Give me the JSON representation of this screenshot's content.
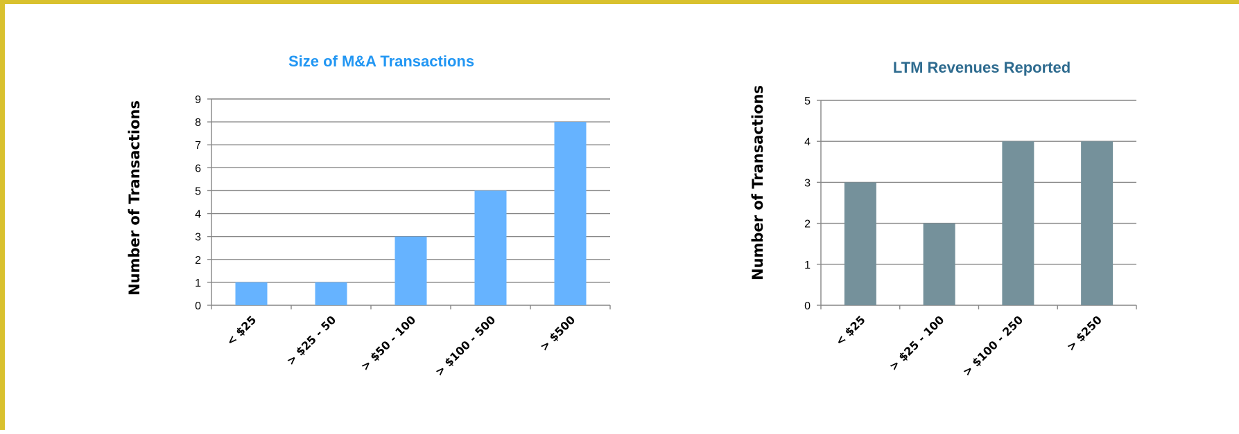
{
  "chart_data": [
    {
      "type": "bar",
      "title": "Size of M&A Transactions",
      "ylabel": "Number of Transactions",
      "xlabel": "",
      "categories": [
        "< $25",
        "> $25 - 50",
        "> $50 - 100",
        "> $100 - 500",
        "> $500"
      ],
      "values": [
        1,
        1,
        3,
        5,
        8
      ],
      "ylim": [
        0,
        9
      ],
      "yticks": [
        "0",
        "1",
        "2",
        "3",
        "4",
        "5",
        "6",
        "7",
        "8",
        "9"
      ],
      "grid": true,
      "legend": "none",
      "bar_color": "#66b3ff",
      "title_color": "#2196f3"
    },
    {
      "type": "bar",
      "title": "LTM Revenues Reported",
      "ylabel": "Number of Transactions",
      "xlabel": "",
      "categories": [
        "< $25",
        "> $25 - 100",
        "> $100 - 250",
        "> $250"
      ],
      "values": [
        3,
        2,
        4,
        4
      ],
      "ylim": [
        0,
        5
      ],
      "yticks": [
        "0",
        "1",
        "2",
        "3",
        "4",
        "5"
      ],
      "grid": true,
      "legend": "none",
      "bar_color": "#75919b",
      "title_color": "#2e6b8f"
    }
  ],
  "colors": {
    "frame_border": "#d9c12e",
    "gridline": "#868686"
  }
}
